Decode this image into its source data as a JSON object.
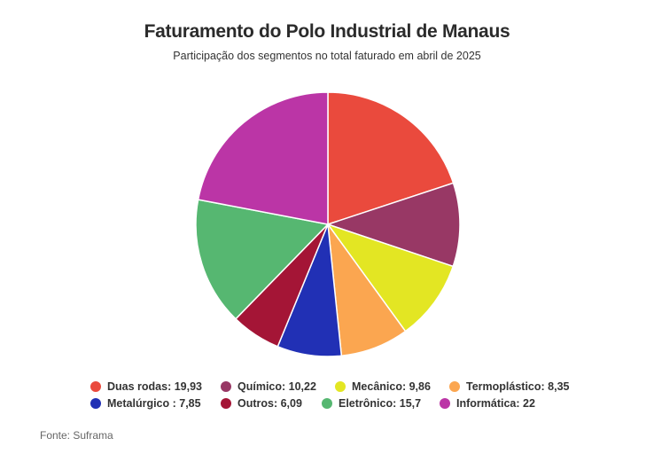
{
  "chart_data": {
    "type": "pie",
    "title": "Faturamento do Polo Industrial de Manaus",
    "subtitle": "Participação dos segmentos no total faturado em abril de 2025",
    "legend_placement": "bottom",
    "categories": [
      "Duas rodas",
      "Químico",
      "Mecânico",
      "Termoplástico",
      "Metalúrgico",
      "Outros",
      "Eletrônico",
      "Informática"
    ],
    "values": [
      19.93,
      10.22,
      9.86,
      8.35,
      7.85,
      6.09,
      15.7,
      22
    ],
    "legend_labels": [
      "Duas rodas: 19,93",
      "Químico: 10,22",
      "Mecânico: 9,86",
      "Termoplástico: 8,35",
      "Metalúrgico : 7,85",
      "Outros: 6,09",
      "Eletrônico: 15,7",
      "Informática: 22"
    ],
    "colors": [
      "#ea4a3d",
      "#983865",
      "#e3e623",
      "#fba650",
      "#2130b5",
      "#a41536",
      "#56b771",
      "#bb35a6"
    ],
    "source": "Fonte: Suframa"
  }
}
